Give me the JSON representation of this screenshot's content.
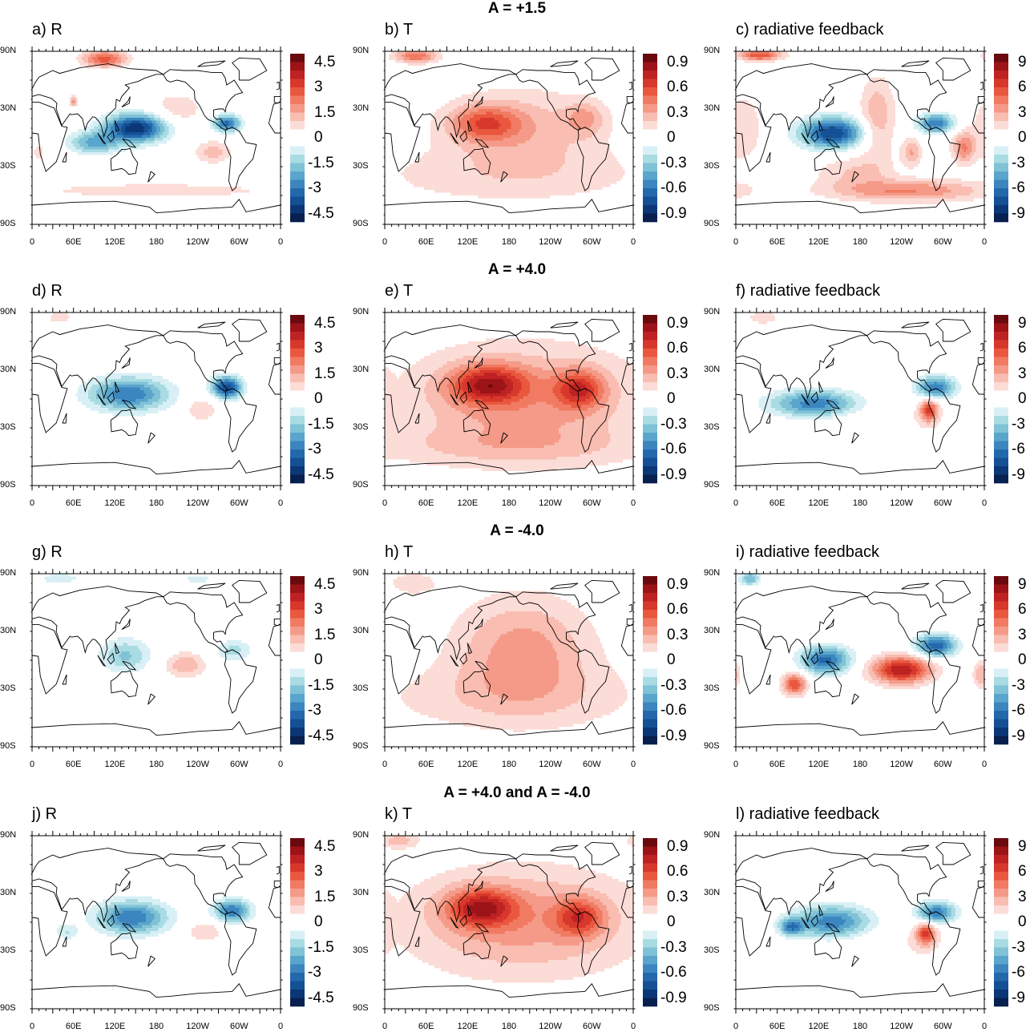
{
  "axes": {
    "lat_labels": [
      {
        "text": "90N",
        "lat": 90
      },
      {
        "text": "30N",
        "lat": 30
      },
      {
        "text": "30S",
        "lat": -30
      },
      {
        "text": "90S",
        "lat": -90
      }
    ],
    "lon_labels": [
      {
        "text": "0",
        "lon": 0
      },
      {
        "text": "60E",
        "lon": 60
      },
      {
        "text": "120E",
        "lon": 120
      },
      {
        "text": "180",
        "lon": 180
      },
      {
        "text": "120W",
        "lon": 240
      },
      {
        "text": "60W",
        "lon": 300
      },
      {
        "text": "0",
        "lon": 360
      }
    ]
  },
  "palette": {
    "reds": [
      "#fcdcd7",
      "#f9bdb1",
      "#f59a88",
      "#f07b62",
      "#e9573f",
      "#d8382b",
      "#be2222",
      "#9c1418",
      "#6b0a0e"
    ],
    "blues": [
      "#d8f0f5",
      "#a9dbe3",
      "#80c2d6",
      "#5aa5cc",
      "#3b86bf",
      "#2468ac",
      "#154f94",
      "#0b3777",
      "#08204f"
    ],
    "zero": "#ffffff"
  },
  "scales": {
    "R": {
      "max": 5,
      "labels": [
        "4.5",
        "3",
        "1.5",
        "0",
        "-1.5",
        "-3",
        "-4.5"
      ]
    },
    "T": {
      "max": 1,
      "labels": [
        "0.9",
        "0.6",
        "0.3",
        "0",
        "-0.3",
        "-0.6",
        "-0.9"
      ]
    },
    "RF": {
      "max": 10,
      "labels": [
        "9",
        "6",
        "3",
        "0",
        "-3",
        "-6",
        "-9"
      ]
    }
  },
  "chart_data": {
    "type": "heatmap",
    "note_levels": "shaded in 20 discrete levels symmetric about 0",
    "rows": [
      {
        "title": "A = +1.5",
        "panels": [
          {
            "label": "a) R",
            "var": "R",
            "features": [
              [
                150,
                10,
                -4.5,
                30,
                10
              ],
              [
                90,
                -5,
                -2.2,
                25,
                8
              ],
              [
                282,
                15,
                -3.2,
                14,
                6
              ],
              [
                105,
                82,
                2.8,
                22,
                6
              ],
              [
                180,
                -55,
                0.8,
                140,
                6
              ],
              [
                210,
                30,
                0.8,
                30,
                14
              ],
              [
                262,
                -15,
                1.3,
                18,
                8
              ],
              [
                10,
                -15,
                0.7,
                8,
                8
              ],
              [
                60,
                38,
                1.8,
                4,
                4
              ]
            ]
          },
          {
            "label": "b) T",
            "var": "T",
            "features": [
              [
                145,
                15,
                0.45,
                35,
                13
              ],
              [
                200,
                10,
                0.25,
                80,
                30
              ],
              [
                45,
                85,
                0.5,
                22,
                5
              ],
              [
                180,
                -40,
                0.15,
                160,
                22
              ],
              [
                290,
                20,
                0.25,
                20,
                12
              ]
            ]
          },
          {
            "label": "c) radiative feedback",
            "var": "RF",
            "features": [
              [
                140,
                5,
                -8,
                32,
                11
              ],
              [
                290,
                15,
                -6,
                18,
                7
              ],
              [
                205,
                20,
                3,
                18,
                30
              ],
              [
                35,
                86,
                6,
                22,
                4
              ],
              [
                330,
                -10,
                4,
                12,
                12
              ],
              [
                250,
                -55,
                4,
                80,
                8
              ],
              [
                170,
                -35,
                2,
                40,
                12
              ],
              [
                10,
                10,
                2,
                20,
                25
              ],
              [
                255,
                -15,
                3,
                10,
                10
              ]
            ]
          }
        ]
      },
      {
        "title": "A = +4.0",
        "panels": [
          {
            "label": "d) R",
            "var": "R",
            "features": [
              [
                140,
                5,
                -3,
                40,
                12
              ],
              [
                282,
                12,
                -4,
                15,
                8
              ],
              [
                245,
                -10,
                0.9,
                18,
                10
              ],
              [
                40,
                85,
                0.8,
                15,
                5
              ]
            ]
          },
          {
            "label": "e) T",
            "var": "T",
            "features": [
              [
                150,
                15,
                0.6,
                38,
                14
              ],
              [
                282,
                10,
                0.5,
                25,
                14
              ],
              [
                200,
                0,
                0.35,
                120,
                40
              ],
              [
                180,
                -50,
                0.15,
                160,
                15
              ]
            ]
          },
          {
            "label": "f) radiative feedback",
            "var": "RF",
            "features": [
              [
                115,
                -5,
                -6,
                45,
                10
              ],
              [
                290,
                12,
                -6,
                20,
                8
              ],
              [
                280,
                -12,
                6,
                9,
                8
              ],
              [
                200,
                -30,
                1,
                90,
                25
              ],
              [
                40,
                85,
                2,
                15,
                5
              ]
            ]
          }
        ]
      },
      {
        "title": "A = -4.0",
        "panels": [
          {
            "label": "g) R",
            "var": "R",
            "features": [
              [
                135,
                5,
                -1.6,
                25,
                12
              ],
              [
                222,
                -5,
                1.5,
                20,
                9
              ],
              [
                292,
                10,
                -1.2,
                18,
                8
              ],
              [
                40,
                85,
                -0.9,
                20,
                4
              ],
              [
                240,
                85,
                -0.7,
                20,
                4
              ]
            ]
          },
          {
            "label": "h) T",
            "var": "T",
            "features": [
              [
                200,
                10,
                0.35,
                70,
                40
              ],
              [
                180,
                -40,
                0.15,
                160,
                25
              ],
              [
                40,
                80,
                0.15,
                30,
                10
              ]
            ]
          },
          {
            "label": "i) radiative feedback",
            "var": "RF",
            "features": [
              [
                130,
                0,
                -6.5,
                25,
                10
              ],
              [
                290,
                15,
                -7,
                20,
                8
              ],
              [
                240,
                -10,
                8,
                30,
                10
              ],
              [
                85,
                -25,
                6,
                12,
                8
              ],
              [
                355,
                -15,
                3,
                8,
                10
              ],
              [
                20,
                85,
                -4,
                10,
                5
              ]
            ]
          }
        ]
      },
      {
        "title": "A = +4.0 and A = -4.0",
        "panels": [
          {
            "label": "j) R",
            "var": "R",
            "features": [
              [
                145,
                5,
                -3,
                35,
                12
              ],
              [
                290,
                12,
                -3,
                18,
                8
              ],
              [
                250,
                -10,
                1,
                18,
                8
              ],
              [
                50,
                -10,
                -1,
                12,
                6
              ]
            ]
          },
          {
            "label": "k) T",
            "var": "T",
            "features": [
              [
                140,
                15,
                0.6,
                35,
                14
              ],
              [
                282,
                5,
                0.45,
                25,
                14
              ],
              [
                200,
                0,
                0.35,
                120,
                40
              ],
              [
                20,
                85,
                0.25,
                20,
                6
              ]
            ]
          },
          {
            "label": "l) radiative feedback",
            "var": "RF",
            "features": [
              [
                140,
                0,
                -6,
                40,
                12
              ],
              [
                290,
                10,
                -6,
                20,
                8
              ],
              [
                275,
                -12,
                6,
                10,
                8
              ],
              [
                220,
                -30,
                1,
                90,
                25
              ],
              [
                80,
                -5,
                -5,
                12,
                6
              ]
            ]
          }
        ]
      }
    ]
  }
}
